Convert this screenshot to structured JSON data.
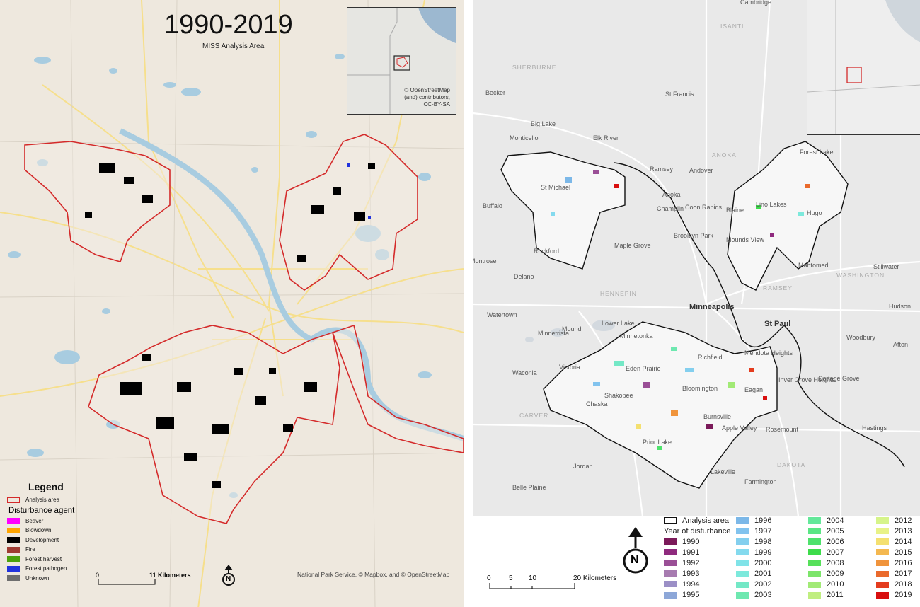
{
  "left_map": {
    "title": "1990-2019",
    "subtitle": "MISS Analysis Area",
    "inset_credit": [
      "© OpenStreetMap",
      "(and) contributors,",
      "CC-BY-SA"
    ],
    "legend_heading": "Legend",
    "analysis_area_label": "Analysis area",
    "agent_heading": "Disturbance agent",
    "agents": [
      {
        "label": "Beaver",
        "color": "#ff00ff"
      },
      {
        "label": "Blowdown",
        "color": "#ffa500"
      },
      {
        "label": "Development",
        "color": "#000000"
      },
      {
        "label": "Fire",
        "color": "#a03c32"
      },
      {
        "label": "Forest harvest",
        "color": "#4ca20c"
      },
      {
        "label": "Forest pathogen",
        "color": "#2233dd"
      },
      {
        "label": "Unknown",
        "color": "#6e6e6e"
      }
    ],
    "scale": {
      "start": "0",
      "end": "11 Kilometers"
    },
    "north_symbol": "N",
    "credit": "National Park Service, © Mapbox, and © OpenStreetMap"
  },
  "right_map": {
    "places": [
      "Cambridge",
      "ISANTI",
      "SHERBURNE",
      "Becker",
      "St Francis",
      "Big Lake",
      "Monticello",
      "Elk River",
      "ANOKA",
      "Forest Lake",
      "Ramsey",
      "Andover",
      "Anoka",
      "Champlin",
      "Coon Rapids",
      "Blaine",
      "Lino Lakes",
      "Hugo",
      "Buffalo",
      "St Michael",
      "Rockford",
      "Brooklyn Park",
      "Maple Grove",
      "Mounds View",
      "Mahtomedi",
      "Stillwater",
      "WASHINGTON",
      "Montrose",
      "Delano",
      "HENNEPIN",
      "RAMSEY",
      "Minneapolis",
      "Hudson",
      "Watertown",
      "Mound",
      "Minnetonka",
      "St Paul",
      "Woodbury",
      "Minnetrista",
      "Lower Lake",
      "Afton",
      "Waconia",
      "Victoria",
      "Eden Prairie",
      "Richfield",
      "Mendota Heights",
      "Bloomington",
      "Eagan",
      "Inver Grove Heights",
      "Cottage Grove",
      "Chaska",
      "Shakopee",
      "CARVER",
      "Burnsville",
      "Apple Valley",
      "Rosemount",
      "Hastings",
      "Prior Lake",
      "Jordan",
      "DAKOTA",
      "Lakeville",
      "Farmington",
      "Belle Plaine"
    ],
    "analysis_area_label": "Analysis area",
    "year_heading": "Year of disturbance",
    "years": [
      {
        "label": "1990",
        "color": "#7b1a5a"
      },
      {
        "label": "1991",
        "color": "#8f2a7e"
      },
      {
        "label": "1992",
        "color": "#9a4f96"
      },
      {
        "label": "1993",
        "color": "#a77bb0"
      },
      {
        "label": "1994",
        "color": "#9b8fc6"
      },
      {
        "label": "1995",
        "color": "#8da7d8"
      },
      {
        "label": "1996",
        "color": "#7cb8e8"
      },
      {
        "label": "1997",
        "color": "#82c3ee"
      },
      {
        "label": "1998",
        "color": "#84cfee"
      },
      {
        "label": "1999",
        "color": "#84daee"
      },
      {
        "label": "2000",
        "color": "#80e3e8"
      },
      {
        "label": "2001",
        "color": "#7de9dc"
      },
      {
        "label": "2002",
        "color": "#74e8c6"
      },
      {
        "label": "2003",
        "color": "#6ee8b0"
      },
      {
        "label": "2004",
        "color": "#64e89a"
      },
      {
        "label": "2005",
        "color": "#5ae684"
      },
      {
        "label": "2006",
        "color": "#4ee26c"
      },
      {
        "label": "2007",
        "color": "#3cdc4a"
      },
      {
        "label": "2008",
        "color": "#56e05a"
      },
      {
        "label": "2009",
        "color": "#7ce56a"
      },
      {
        "label": "2010",
        "color": "#a2ea76"
      },
      {
        "label": "2011",
        "color": "#c0ee80"
      },
      {
        "label": "2012",
        "color": "#d6f48a"
      },
      {
        "label": "2013",
        "color": "#e8f288"
      },
      {
        "label": "2014",
        "color": "#f4e070"
      },
      {
        "label": "2015",
        "color": "#f4b850"
      },
      {
        "label": "2016",
        "color": "#f0943c"
      },
      {
        "label": "2017",
        "color": "#ea6a2c"
      },
      {
        "label": "2018",
        "color": "#e43c1e"
      },
      {
        "label": "2019",
        "color": "#d80f0f"
      }
    ],
    "scale": {
      "ticks": [
        "0",
        "5",
        "10",
        "20 Kilometers"
      ]
    },
    "north_symbol": "N"
  }
}
